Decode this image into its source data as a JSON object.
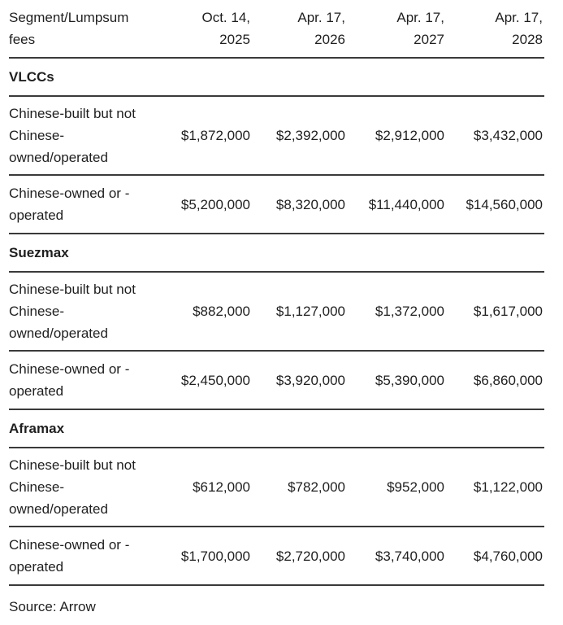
{
  "page": {
    "background_color": "#ffffff",
    "text_color": "#1f1f1f",
    "rule_color": "#3a3a3a"
  },
  "table": {
    "header": {
      "label_lines": [
        "Segment/Lumpsum",
        "fees"
      ],
      "columns": [
        {
          "line1": "Oct. 14,",
          "line2": "2025"
        },
        {
          "line1": "Apr. 17,",
          "line2": "2026"
        },
        {
          "line1": "Apr. 17,",
          "line2": "2027"
        },
        {
          "line1": "Apr. 17,",
          "line2": "2028"
        }
      ]
    },
    "sections": [
      {
        "name": "VLCCs",
        "rows": [
          {
            "label_lines": [
              "Chinese-built but not",
              "Chinese-",
              "owned/operated"
            ],
            "values": [
              "$1,872,000",
              "$2,392,000",
              "$2,912,000",
              "$3,432,000"
            ]
          },
          {
            "label_lines": [
              "Chinese-owned or -",
              "operated"
            ],
            "values": [
              "$5,200,000",
              "$8,320,000",
              "$11,440,000",
              "$14,560,000"
            ]
          }
        ]
      },
      {
        "name": "Suezmax",
        "rows": [
          {
            "label_lines": [
              "Chinese-built but not",
              "Chinese-",
              "owned/operated"
            ],
            "values": [
              "$882,000",
              "$1,127,000",
              "$1,372,000",
              "$1,617,000"
            ]
          },
          {
            "label_lines": [
              "Chinese-owned or -",
              "operated"
            ],
            "values": [
              "$2,450,000",
              "$3,920,000",
              "$5,390,000",
              "$6,860,000"
            ]
          }
        ]
      },
      {
        "name": "Aframax",
        "rows": [
          {
            "label_lines": [
              "Chinese-built but not",
              "Chinese-",
              "owned/operated"
            ],
            "values": [
              "$612,000",
              "$782,000",
              "$952,000",
              "$1,122,000"
            ]
          },
          {
            "label_lines": [
              "Chinese-owned or -",
              "operated"
            ],
            "values": [
              "$1,700,000",
              "$2,720,000",
              "$3,740,000",
              "$4,760,000"
            ]
          }
        ]
      }
    ],
    "source": "Source: Arrow"
  },
  "chart_data": {
    "type": "table",
    "title": "Segment/Lumpsum fees",
    "columns": [
      "Segment/Lumpsum fees",
      "Oct. 14, 2025",
      "Apr. 17, 2026",
      "Apr. 17, 2027",
      "Apr. 17, 2028"
    ],
    "sections": [
      {
        "segment": "VLCCs",
        "rows": [
          {
            "label": "Chinese-built but not Chinese-owned/operated",
            "values_usd": [
              1872000,
              2392000,
              2912000,
              3432000
            ]
          },
          {
            "label": "Chinese-owned or -operated",
            "values_usd": [
              5200000,
              8320000,
              11440000,
              14560000
            ]
          }
        ]
      },
      {
        "segment": "Suezmax",
        "rows": [
          {
            "label": "Chinese-built but not Chinese-owned/operated",
            "values_usd": [
              882000,
              1127000,
              1372000,
              1617000
            ]
          },
          {
            "label": "Chinese-owned or -operated",
            "values_usd": [
              2450000,
              3920000,
              5390000,
              6860000
            ]
          }
        ]
      },
      {
        "segment": "Aframax",
        "rows": [
          {
            "label": "Chinese-built but not Chinese-owned/operated",
            "values_usd": [
              612000,
              782000,
              952000,
              1122000
            ]
          },
          {
            "label": "Chinese-owned or -operated",
            "values_usd": [
              1700000,
              2720000,
              3740000,
              4760000
            ]
          }
        ]
      }
    ],
    "source": "Source: Arrow",
    "legend_position": "none",
    "grid": "horizontal-rules"
  }
}
